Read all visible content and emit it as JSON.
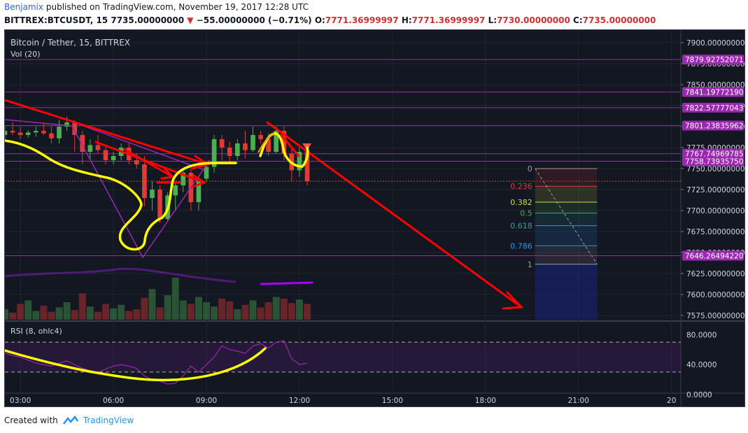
{
  "header": {
    "author": "Benjamix",
    "published_text": "published on TradingView.com, November 19, 2017 12:28 UTC",
    "symbol_line": "BITTREX:BTCUSDT, 15",
    "price": "7735.00000000",
    "change": "−55.00000000 (−0.71%)",
    "o_label": "O:",
    "o_value": "7771.36999997",
    "h_label": "H:",
    "h_value": "7771.36999997",
    "l_label": "L:",
    "l_value": "7730.00000000",
    "c_label": "C:",
    "c_value": "7735.00000000"
  },
  "chart": {
    "title": "Bitcoin / Tether, 15, BITTREX",
    "volume_label": "Vol (20)",
    "rsi_label": "RSI (8, ohlc4)",
    "colors": {
      "background": "#131722",
      "up": "#4caf50",
      "down": "#e53935",
      "hline": "#9c27b0",
      "label_bg": "#9c27b0",
      "drawing_red": "#ff0000",
      "drawing_yellow": "#ffff00"
    }
  },
  "chart_data": {
    "type": "candlestick",
    "y_axis": {
      "range": [
        7570,
        7915
      ],
      "ticks": [
        "7900.00000000",
        "7875.00000000",
        "7850.00000000",
        "7825.00000000",
        "7800.00000000",
        "7775.00000000",
        "7750.00000000",
        "7725.00000000",
        "7700.00000000",
        "7675.00000000",
        "7650.00000000",
        "7625.00000000",
        "7600.00000000",
        "7575.00000000"
      ]
    },
    "x_axis": {
      "ticks": [
        "03:00",
        "06:00",
        "09:00",
        "12:00",
        "15:00",
        "18:00",
        "21:00",
        "20"
      ],
      "tick_hours": [
        3,
        6,
        9,
        12,
        15,
        18,
        21,
        24
      ],
      "range_hours": [
        2.5,
        24.3
      ]
    },
    "horizontal_levels": [
      {
        "label": "7879.92752071",
        "value": 7879.93
      },
      {
        "label": "7841.19772190",
        "value": 7841.2
      },
      {
        "label": "7822.57777043",
        "value": 7822.58
      },
      {
        "label": "7801.23835962",
        "value": 7801.24
      },
      {
        "label": "7767.74969785",
        "value": 7767.75
      },
      {
        "label": "7758.73935750",
        "value": 7758.74
      },
      {
        "label": "7646.26494220",
        "value": 7646.26
      }
    ],
    "last_price": 7735,
    "fibonacci": {
      "levels": [
        {
          "ratio": "0",
          "price": 7750,
          "color": "#9e9e9e"
        },
        {
          "ratio": "0.236",
          "price": 7729,
          "color": "#e53935"
        },
        {
          "ratio": "0.382",
          "price": 7710,
          "color": "#cddc39"
        },
        {
          "ratio": "0.5",
          "price": 7697,
          "color": "#4caf50"
        },
        {
          "ratio": "0.618",
          "price": 7682,
          "color": "#26a69a"
        },
        {
          "ratio": "0.786",
          "price": 7658,
          "color": "#2196f3"
        },
        {
          "ratio": "1",
          "price": 7636,
          "color": "#9e9e9e"
        }
      ],
      "hours": [
        19.6,
        21.6
      ]
    },
    "candles": [
      {
        "t": 2.5,
        "o": 7790,
        "h": 7800,
        "l": 7785,
        "c": 7795
      },
      {
        "t": 2.75,
        "o": 7795,
        "h": 7805,
        "l": 7790,
        "c": 7793
      },
      {
        "t": 3.0,
        "o": 7793,
        "h": 7800,
        "l": 7785,
        "c": 7790
      },
      {
        "t": 3.25,
        "o": 7790,
        "h": 7796,
        "l": 7787,
        "c": 7793
      },
      {
        "t": 3.5,
        "o": 7793,
        "h": 7800,
        "l": 7788,
        "c": 7795
      },
      {
        "t": 3.75,
        "o": 7795,
        "h": 7805,
        "l": 7790,
        "c": 7792
      },
      {
        "t": 4.0,
        "o": 7792,
        "h": 7800,
        "l": 7780,
        "c": 7786
      },
      {
        "t": 4.25,
        "o": 7786,
        "h": 7808,
        "l": 7780,
        "c": 7800
      },
      {
        "t": 4.5,
        "o": 7800,
        "h": 7812,
        "l": 7795,
        "c": 7805
      },
      {
        "t": 4.75,
        "o": 7805,
        "h": 7808,
        "l": 7770,
        "c": 7790
      },
      {
        "t": 5.0,
        "o": 7790,
        "h": 7795,
        "l": 7755,
        "c": 7770
      },
      {
        "t": 5.25,
        "o": 7770,
        "h": 7785,
        "l": 7760,
        "c": 7778
      },
      {
        "t": 5.5,
        "o": 7778,
        "h": 7790,
        "l": 7768,
        "c": 7772
      },
      {
        "t": 5.75,
        "o": 7772,
        "h": 7778,
        "l": 7755,
        "c": 7760
      },
      {
        "t": 6.0,
        "o": 7760,
        "h": 7770,
        "l": 7755,
        "c": 7765
      },
      {
        "t": 6.25,
        "o": 7765,
        "h": 7780,
        "l": 7760,
        "c": 7775
      },
      {
        "t": 6.5,
        "o": 7775,
        "h": 7780,
        "l": 7755,
        "c": 7760
      },
      {
        "t": 6.75,
        "o": 7760,
        "h": 7768,
        "l": 7750,
        "c": 7755
      },
      {
        "t": 7.0,
        "o": 7755,
        "h": 7765,
        "l": 7705,
        "c": 7715
      },
      {
        "t": 7.25,
        "o": 7715,
        "h": 7735,
        "l": 7700,
        "c": 7725
      },
      {
        "t": 7.5,
        "o": 7725,
        "h": 7730,
        "l": 7685,
        "c": 7690
      },
      {
        "t": 7.75,
        "o": 7690,
        "h": 7722,
        "l": 7688,
        "c": 7718
      },
      {
        "t": 8.0,
        "o": 7718,
        "h": 7735,
        "l": 7700,
        "c": 7730
      },
      {
        "t": 8.25,
        "o": 7730,
        "h": 7750,
        "l": 7722,
        "c": 7745
      },
      {
        "t": 8.5,
        "o": 7745,
        "h": 7750,
        "l": 7700,
        "c": 7710
      },
      {
        "t": 8.75,
        "o": 7710,
        "h": 7742,
        "l": 7700,
        "c": 7738
      },
      {
        "t": 9.0,
        "o": 7738,
        "h": 7755,
        "l": 7735,
        "c": 7752
      },
      {
        "t": 9.25,
        "o": 7752,
        "h": 7790,
        "l": 7745,
        "c": 7785
      },
      {
        "t": 9.5,
        "o": 7785,
        "h": 7790,
        "l": 7760,
        "c": 7775
      },
      {
        "t": 9.75,
        "o": 7775,
        "h": 7782,
        "l": 7755,
        "c": 7765
      },
      {
        "t": 10.0,
        "o": 7765,
        "h": 7785,
        "l": 7760,
        "c": 7780
      },
      {
        "t": 10.25,
        "o": 7780,
        "h": 7795,
        "l": 7762,
        "c": 7772
      },
      {
        "t": 10.5,
        "o": 7772,
        "h": 7800,
        "l": 7770,
        "c": 7790
      },
      {
        "t": 10.75,
        "o": 7790,
        "h": 7795,
        "l": 7780,
        "c": 7785
      },
      {
        "t": 11.0,
        "o": 7785,
        "h": 7792,
        "l": 7765,
        "c": 7770
      },
      {
        "t": 11.25,
        "o": 7770,
        "h": 7800,
        "l": 7768,
        "c": 7795
      },
      {
        "t": 11.5,
        "o": 7795,
        "h": 7800,
        "l": 7760,
        "c": 7768
      },
      {
        "t": 11.75,
        "o": 7768,
        "h": 7775,
        "l": 7735,
        "c": 7748
      },
      {
        "t": 12.0,
        "o": 7748,
        "h": 7775,
        "l": 7740,
        "c": 7770
      },
      {
        "t": 12.25,
        "o": 7771,
        "h": 7771,
        "l": 7730,
        "c": 7735
      }
    ],
    "volume": [
      12,
      8,
      18,
      22,
      10,
      16,
      9,
      14,
      20,
      11,
      30,
      15,
      9,
      18,
      13,
      17,
      10,
      12,
      25,
      35,
      14,
      28,
      48,
      22,
      18,
      26,
      20,
      15,
      24,
      21,
      12,
      17,
      22,
      14,
      20,
      26,
      24,
      19,
      23,
      18
    ],
    "rsi": {
      "y_ticks": [
        "80.0000",
        "40.0000",
        "0.0000"
      ],
      "band": [
        30,
        70
      ],
      "values": [
        55,
        52,
        50,
        46,
        42,
        40,
        38,
        42,
        45,
        40,
        35,
        32,
        30,
        34,
        38,
        40,
        38,
        35,
        25,
        20,
        18,
        14,
        15,
        25,
        38,
        30,
        40,
        50,
        65,
        60,
        58,
        55,
        65,
        68,
        62,
        70,
        72,
        48,
        40,
        42
      ]
    }
  },
  "footer": {
    "created_with": "Created with",
    "brand": "TradingView"
  }
}
